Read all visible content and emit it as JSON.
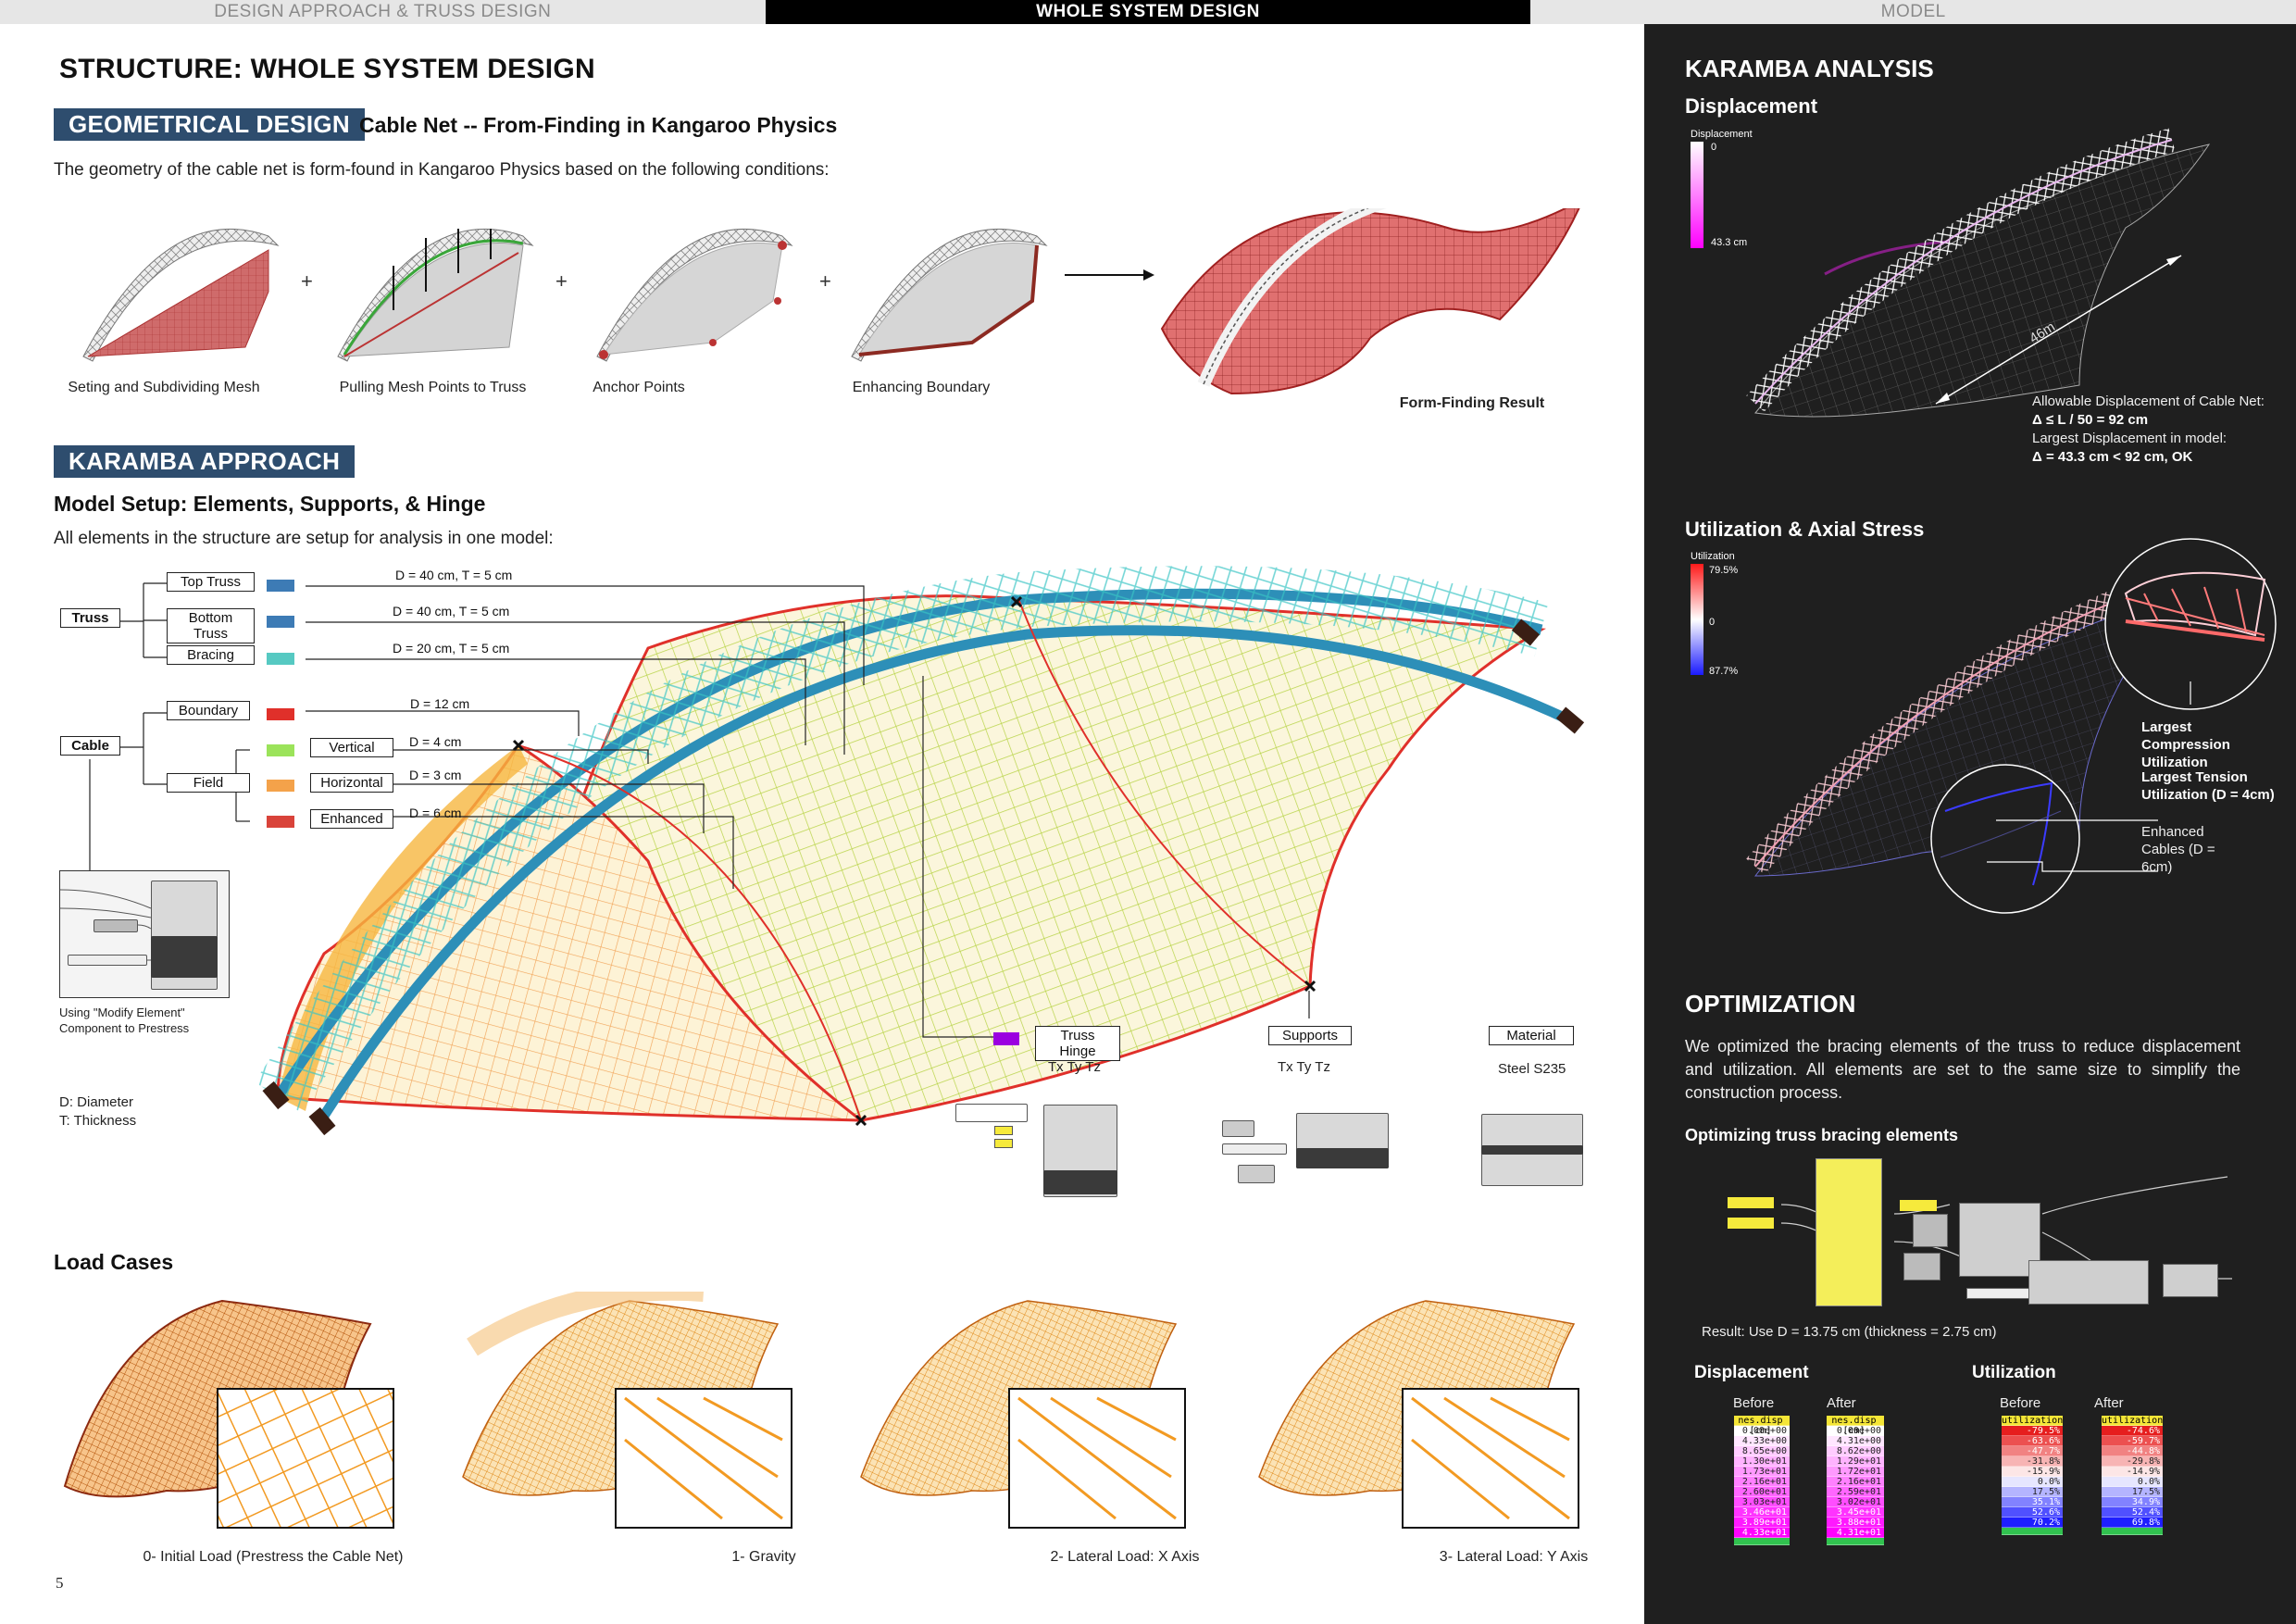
{
  "nav": {
    "tabs": [
      "DESIGN APPROACH & TRUSS DESIGN",
      "WHOLE SYSTEM DESIGN",
      "MODEL"
    ]
  },
  "page": {
    "title": "STRUCTURE: WHOLE SYSTEM DESIGN",
    "page_number": "5"
  },
  "geometric": {
    "badge": "GEOMETRICAL DESIGN",
    "subtitle": "Cable Net -- From-Finding in Kangaroo Physics",
    "intro": "The geometry of the cable net is form-found in Kangaroo Physics based on the following conditions:",
    "steps": [
      "Seting and Subdividing Mesh",
      "Pulling Mesh Points to Truss",
      "Anchor Points",
      "Enhancing Boundary"
    ],
    "plus": "+",
    "result_label": "Form-Finding Result"
  },
  "karamba_approach": {
    "badge": "KARAMBA APPROACH",
    "subtitle": "Model Setup: Elements, Supports, & Hinge",
    "intro": "All elements in the structure are setup for analysis in one model:",
    "truss": "Truss",
    "truss_items": [
      {
        "label": "Top Truss",
        "dim": "D = 40 cm, T = 5 cm",
        "color": "#3d7bb5"
      },
      {
        "label": "Bottom Truss",
        "dim": "D = 40 cm, T = 5 cm",
        "color": "#3d7bb5"
      },
      {
        "label": "Bracing",
        "dim": "D = 20 cm, T = 5 cm",
        "color": "#56c9c2"
      }
    ],
    "cable": "Cable",
    "boundary": {
      "label": "Boundary",
      "dim": "D = 12 cm",
      "color": "#e0302a"
    },
    "field": "Field",
    "field_items": [
      {
        "label": "Vertical",
        "dim": "D = 4 cm",
        "color": "#9be35a"
      },
      {
        "label": "Horizontal",
        "dim": "D = 3 cm",
        "color": "#f4a24a"
      },
      {
        "label": "Enhanced",
        "dim": "D = 6 cm",
        "color": "#d9433a"
      }
    ],
    "modify_caption": "Using \"Modify Element\" Component to Prestress",
    "legend_d": "D: Diameter",
    "legend_t": "T: Thickness",
    "hinge": {
      "label": "Truss Hinge",
      "dofs": "Tx   Ty   Tz",
      "color": "#9b00e0"
    },
    "supports": {
      "label": "Supports",
      "dofs": "Tx   Ty   Tz"
    },
    "material": {
      "label": "Material",
      "value": "Steel S235"
    }
  },
  "load_cases": {
    "title": "Load Cases",
    "items": [
      "0- Initial Load (Prestress the Cable Net)",
      "1- Gravity",
      "2- Lateral Load: X Axis",
      "3- Lateral Load: Y Axis"
    ]
  },
  "right": {
    "heading": "KARAMBA ANALYSIS",
    "displacement": {
      "title": "Displacement",
      "legend_title": "Displacement",
      "legend_min": "0",
      "legend_max": "43.3 cm",
      "span": "46m",
      "note1": "Allowable Displacement of Cable Net:",
      "note2": "Δ  ≤ L / 50 = 92 cm",
      "note3": "Largest Displacement in model:",
      "note4": "Δ = 43.3 cm < 92 cm, OK"
    },
    "utilization": {
      "title": "Utilization & Axial Stress",
      "legend_title": "Utilization",
      "legend_top": "79.5%",
      "legend_mid": "0",
      "legend_bot": "87.7%",
      "callout1": "Largest Compression Utilization",
      "callout2": "Largest Tension Utilization (D = 4cm)",
      "callout3": "Enhanced Cables (D = 6cm)"
    },
    "optimization": {
      "heading": "OPTIMIZATION",
      "text": "We optimized the bracing elements of the truss to reduce displacement and utilization. All elements are set to the same size to simplify the construction process.",
      "sub": "Optimizing truss bracing elements",
      "result": "Result: Use D = 13.75 cm (thickness = 2.75 cm)",
      "disp_title": "Displacement",
      "util_title": "Utilization",
      "before": "Before",
      "after": "After",
      "disp_before": [
        "nes.disp [cm]",
        "0.00e+00",
        "4.33e+00",
        "8.65e+00",
        "1.30e+01",
        "1.73e+01",
        "2.16e+01",
        "2.60e+01",
        "3.03e+01",
        "3.46e+01",
        "3.89e+01",
        "4.33e+01"
      ],
      "disp_after": [
        "nes.disp [cm]",
        "0.00e+00",
        "4.31e+00",
        "8.62e+00",
        "1.29e+01",
        "1.72e+01",
        "2.16e+01",
        "2.59e+01",
        "3.02e+01",
        "3.45e+01",
        "3.88e+01",
        "4.31e+01"
      ],
      "util_before": [
        "utilization",
        "-79.5%",
        "-63.6%",
        "-47.7%",
        "-31.8%",
        "-15.9%",
        "0.0%",
        "17.5%",
        "35.1%",
        "52.6%",
        "70.2%"
      ],
      "util_after": [
        "utilization",
        "-74.6%",
        "-59.7%",
        "-44.8%",
        "-29.8%",
        "-14.9%",
        "0.0%",
        "17.5%",
        "34.9%",
        "52.4%",
        "69.8%"
      ]
    }
  }
}
